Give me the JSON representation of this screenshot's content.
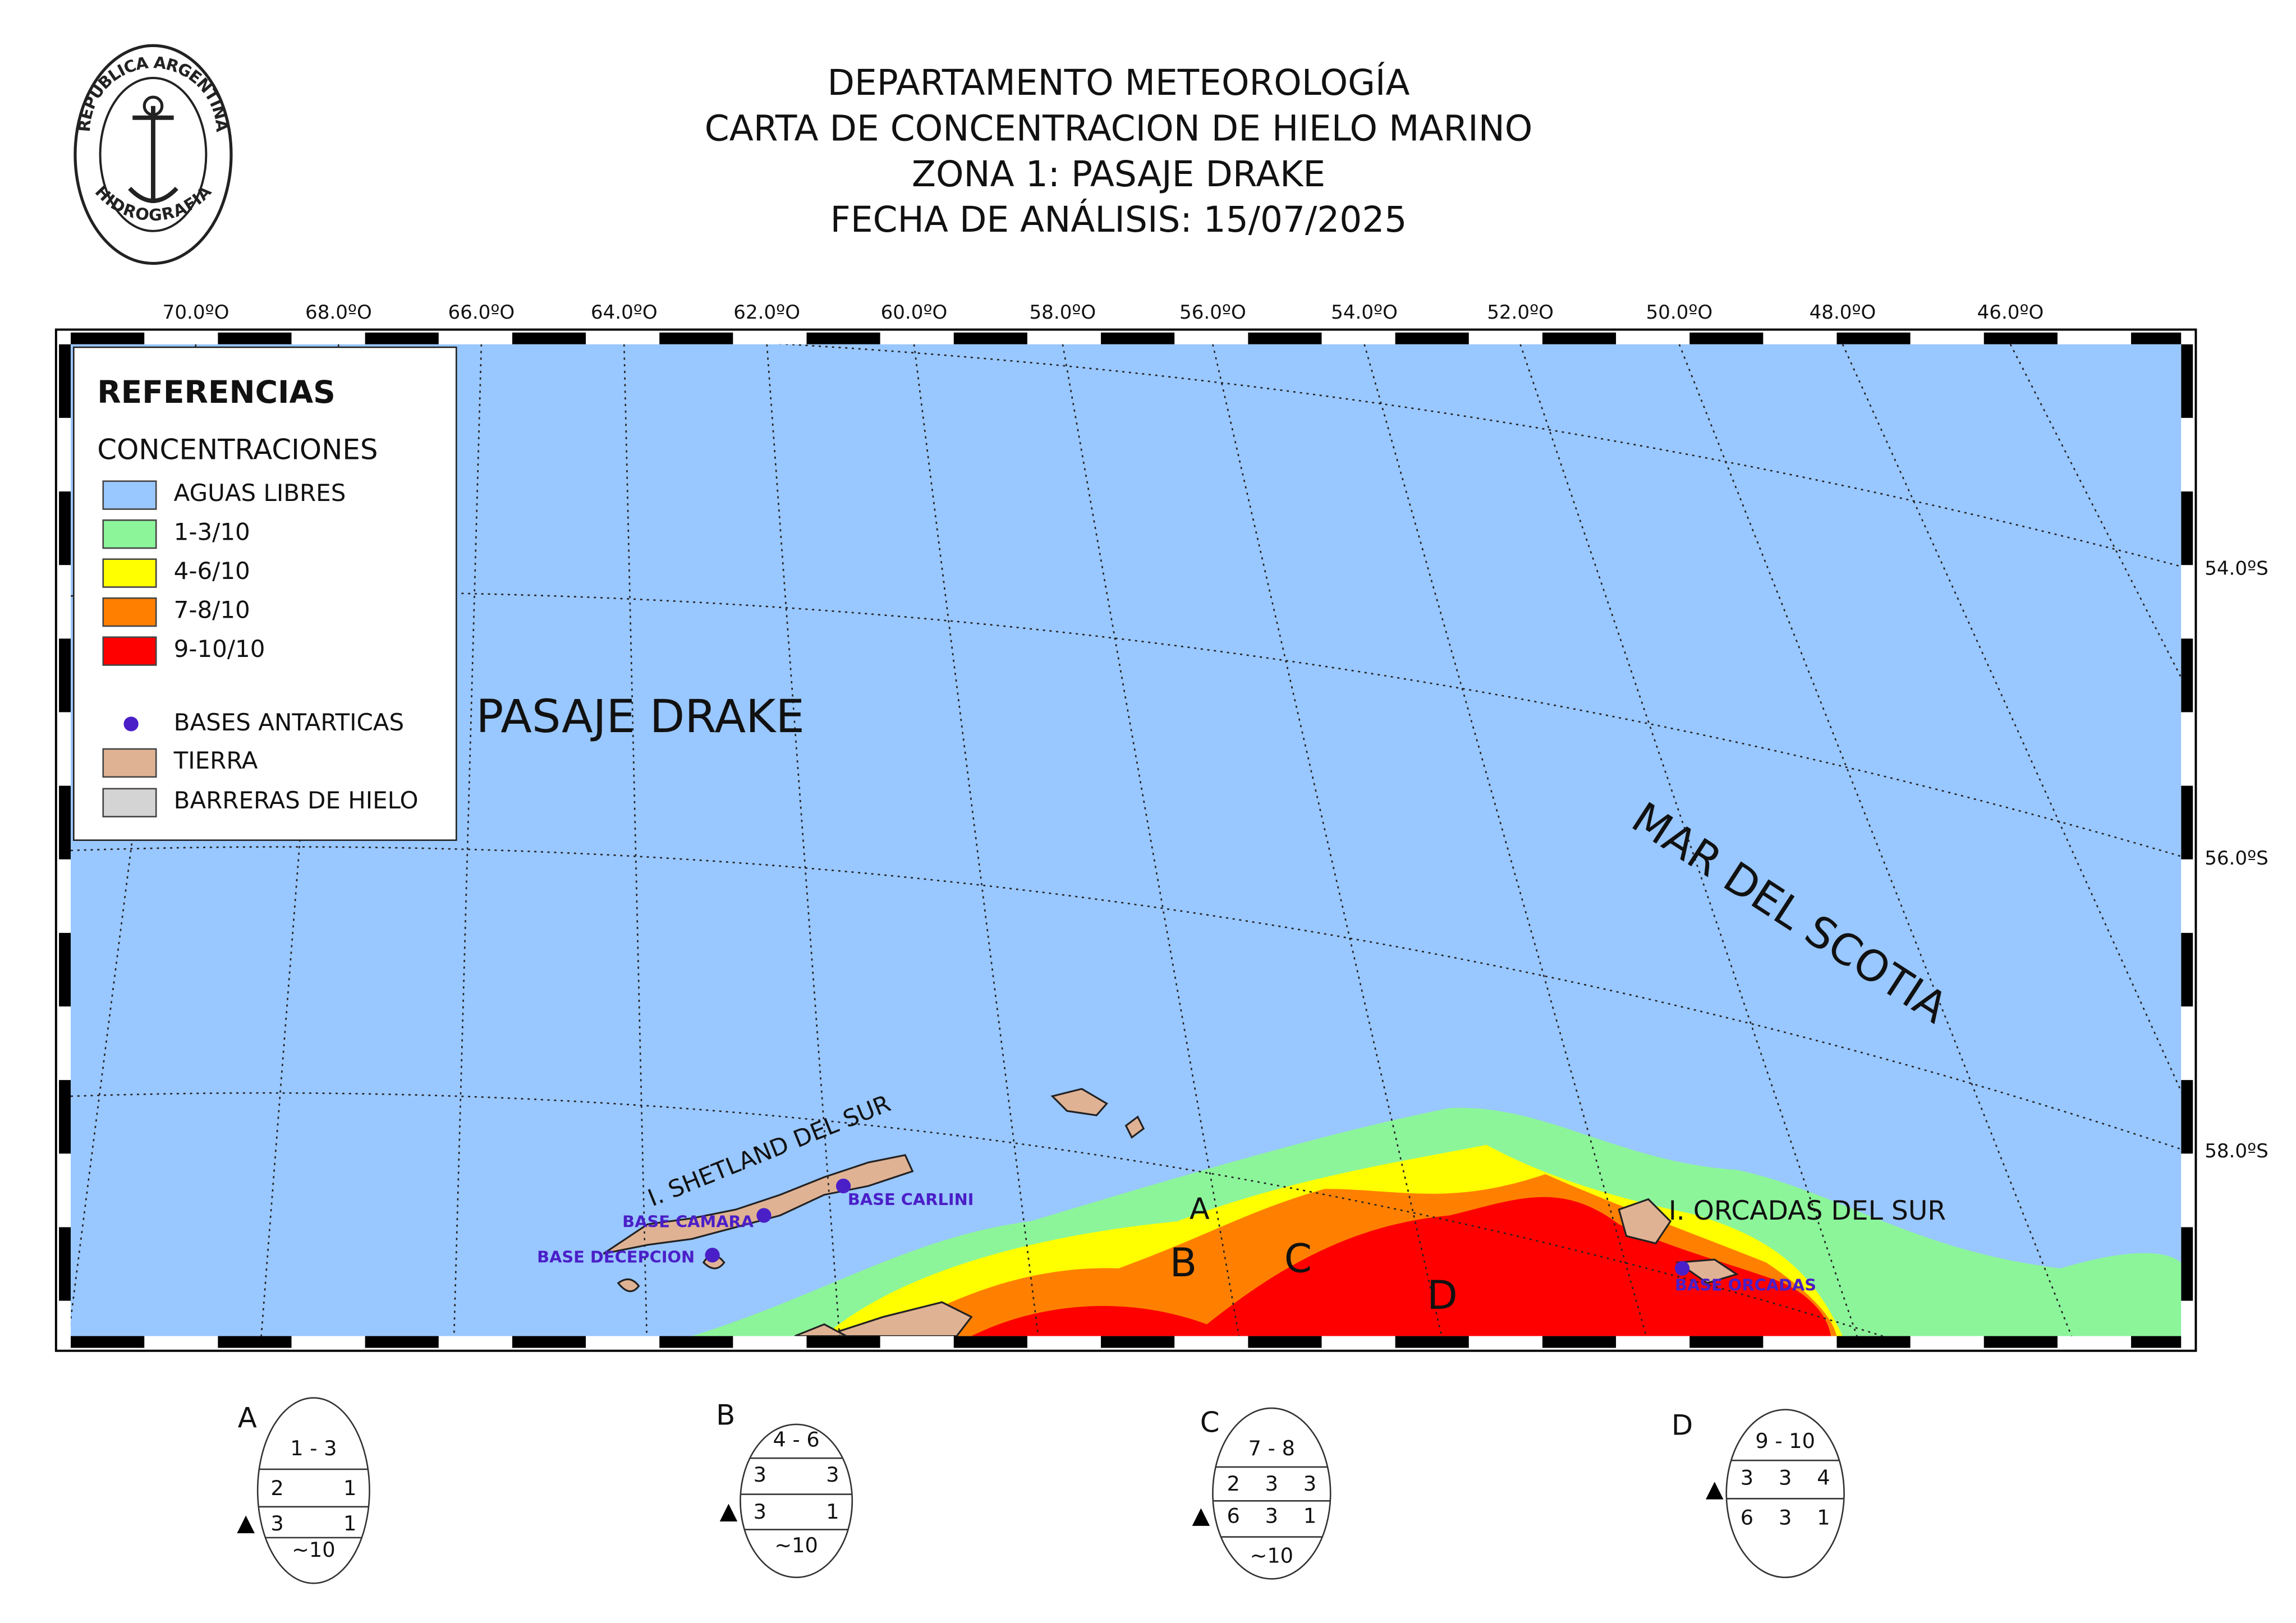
{
  "header": {
    "lines": [
      "DEPARTAMENTO METEOROLOGÍA",
      "CARTA DE CONCENTRACION DE HIELO MARINO",
      "ZONA 1: PASAJE DRAKE",
      "FECHA DE ANÁLISIS: 15/07/2025"
    ],
    "seal_top": "REPUBLICA ARGENTINA",
    "seal_bottom": "HIDROGRAFIA"
  },
  "map": {
    "lon_labels": [
      "70.0ºO",
      "68.0ºO",
      "66.0ºO",
      "64.0ºO",
      "62.0ºO",
      "60.0ºO",
      "58.0ºO",
      "56.0ºO",
      "54.0ºO",
      "52.0ºO",
      "50.0ºO",
      "48.0ºO",
      "46.0ºO"
    ],
    "lat_labels": [
      "54.0ºS",
      "56.0ºS",
      "58.0ºS"
    ],
    "regions": [
      "PASAJE DRAKE",
      "MAR DEL SCOTIA"
    ],
    "islands": [
      "I. SHETLAND DEL SUR",
      "I. ORCADAS DEL SUR"
    ],
    "bases": [
      "BASE CARLINI",
      "BASE CAMARA",
      "BASE DECEPCION",
      "BASE ORCADAS"
    ],
    "zones": [
      "A",
      "B",
      "C",
      "D"
    ]
  },
  "legend": {
    "title": "REFERENCIAS",
    "subtitle": "CONCENTRACIONES",
    "items": [
      {
        "label": "AGUAS LIBRES",
        "color": "#99c7ff"
      },
      {
        "label": "1-3/10",
        "color": "#8cf59a"
      },
      {
        "label": "4-6/10",
        "color": "#ffff00"
      },
      {
        "label": "7-8/10",
        "color": "#ff8000"
      },
      {
        "label": "9-10/10",
        "color": "#ff0000"
      }
    ],
    "bases": {
      "label": "BASES ANTARTICAS",
      "color": "#4a1fc8"
    },
    "land": {
      "label": "TIERRA",
      "color": "#e0b294"
    },
    "barriers": {
      "label": "BARRERAS DE HIELO",
      "color": "#d4d4d4"
    }
  },
  "egg_codes": [
    {
      "letter": "A",
      "rows": [
        [
          "1  -  3"
        ],
        [
          "2",
          "1"
        ],
        [
          "3",
          "1"
        ],
        [
          "~10"
        ]
      ]
    },
    {
      "letter": "B",
      "rows": [
        [
          "4  -  6"
        ],
        [
          "3",
          "3"
        ],
        [
          "3",
          "1"
        ],
        [
          "~10"
        ]
      ]
    },
    {
      "letter": "C",
      "rows": [
        [
          "7  -  8"
        ],
        [
          "2",
          "3",
          "3"
        ],
        [
          "6",
          "3",
          "1"
        ],
        [
          "~10"
        ]
      ]
    },
    {
      "letter": "D",
      "rows": [
        [
          "9  -  10"
        ],
        [
          "3",
          "3",
          "4"
        ],
        [
          "6",
          "3",
          "1"
        ]
      ]
    }
  ]
}
